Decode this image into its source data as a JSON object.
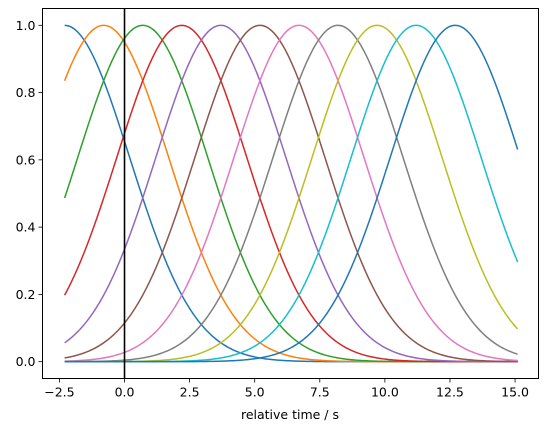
{
  "chart_data": {
    "type": "line",
    "title": "",
    "xlabel": "relative time / s",
    "ylabel": "",
    "xlim": [
      -3.15,
      15.9
    ],
    "ylim": [
      -0.05,
      1.05
    ],
    "xticks": [
      -2.5,
      0.0,
      2.5,
      5.0,
      7.5,
      10.0,
      12.5,
      15.0
    ],
    "xtick_labels": [
      "−2.5",
      "0.0",
      "2.5",
      "5.0",
      "7.5",
      "10.0",
      "12.5",
      "15.0"
    ],
    "yticks": [
      0.0,
      0.2,
      0.4,
      0.6,
      0.8,
      1.0
    ],
    "ytick_labels": [
      "0.0",
      "0.2",
      "0.4",
      "0.6",
      "0.8",
      "1.0"
    ],
    "grid": false,
    "legend": "none",
    "x_range": [
      -2.3,
      15.1
    ],
    "curve_shape": "gaussian",
    "sigma": 2.5,
    "vertical_line": {
      "x": 0.0,
      "color": "#000000"
    },
    "series": [
      {
        "center": -2.3,
        "color": "#1f77b4"
      },
      {
        "center": -0.8,
        "color": "#ff7f0e"
      },
      {
        "center": 0.7,
        "color": "#2ca02c"
      },
      {
        "center": 2.2,
        "color": "#d62728"
      },
      {
        "center": 3.7,
        "color": "#9467bd"
      },
      {
        "center": 5.2,
        "color": "#8c564b"
      },
      {
        "center": 6.7,
        "color": "#e377c2"
      },
      {
        "center": 8.2,
        "color": "#7f7f7f"
      },
      {
        "center": 9.7,
        "color": "#bcbd22"
      },
      {
        "center": 11.2,
        "color": "#17becf"
      },
      {
        "center": 12.7,
        "color": "#1f77b4"
      }
    ]
  }
}
